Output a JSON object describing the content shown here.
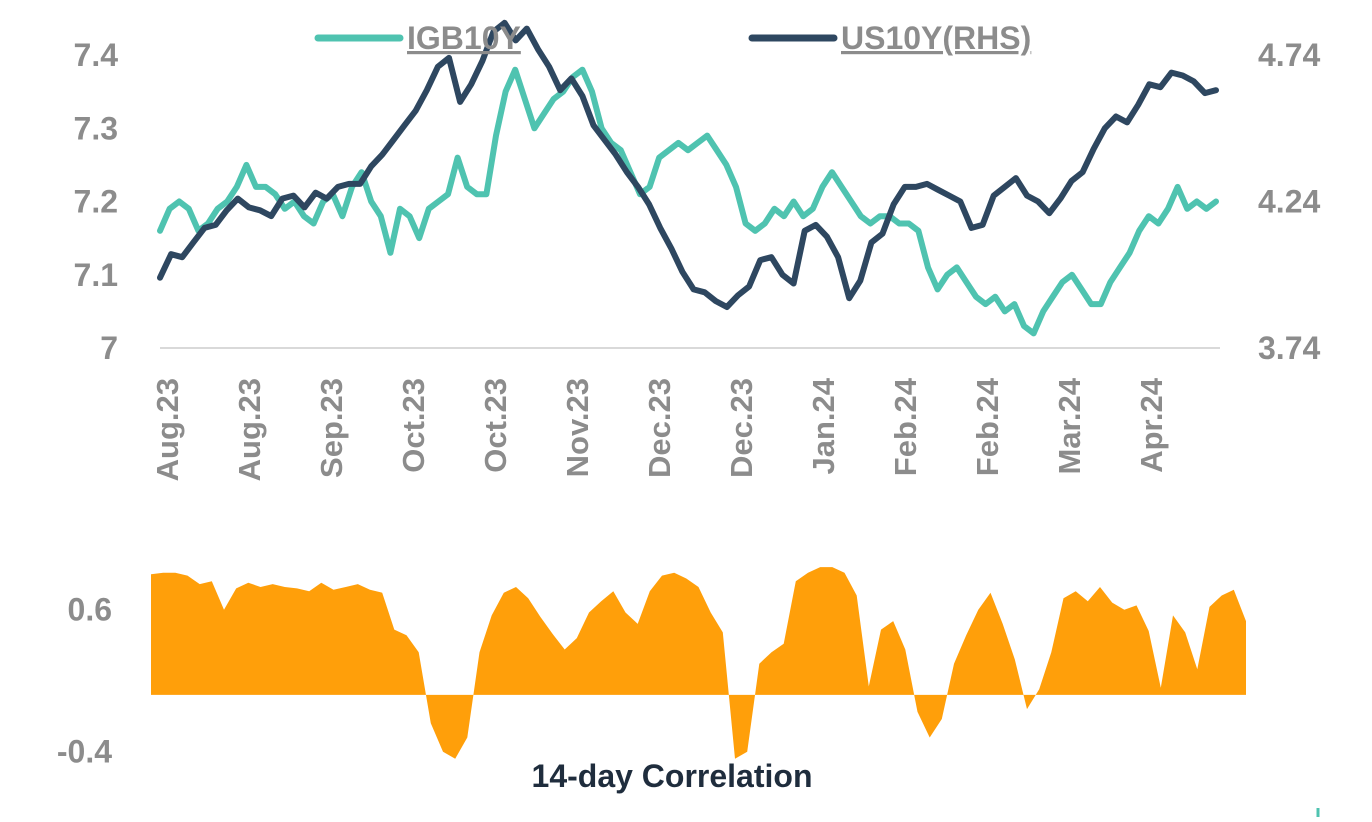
{
  "chart_data": [
    {
      "type": "line",
      "legend": {
        "placement": "top"
      },
      "y_left": {
        "ticks": [
          "7",
          "7.1",
          "7.2",
          "7.3",
          "7.4"
        ],
        "range": [
          7.0,
          7.4
        ]
      },
      "y_right": {
        "ticks": [
          "3.74",
          "4.24",
          "4.74"
        ],
        "range": [
          3.74,
          4.74
        ]
      },
      "x_ticks": [
        "Aug.23",
        "Aug.23",
        "Sep.23",
        "Oct.23",
        "Oct.23",
        "Nov.23",
        "Dec.23",
        "Dec.23",
        "Jan.24",
        "Feb.24",
        "Feb.24",
        "Mar.24",
        "Apr.24"
      ],
      "series": [
        {
          "name": "IGB10Y",
          "axis": "left",
          "color": "#4fc3b0",
          "values": [
            7.16,
            7.19,
            7.2,
            7.19,
            7.16,
            7.17,
            7.19,
            7.2,
            7.22,
            7.25,
            7.22,
            7.22,
            7.21,
            7.19,
            7.2,
            7.18,
            7.17,
            7.2,
            7.21,
            7.18,
            7.22,
            7.24,
            7.2,
            7.18,
            7.13,
            7.19,
            7.18,
            7.15,
            7.19,
            7.2,
            7.21,
            7.26,
            7.22,
            7.21,
            7.21,
            7.29,
            7.35,
            7.38,
            7.34,
            7.3,
            7.32,
            7.34,
            7.35,
            7.37,
            7.38,
            7.35,
            7.3,
            7.28,
            7.27,
            7.24,
            7.21,
            7.22,
            7.26,
            7.27,
            7.28,
            7.27,
            7.28,
            7.29,
            7.27,
            7.25,
            7.22,
            7.17,
            7.16,
            7.17,
            7.19,
            7.18,
            7.2,
            7.18,
            7.19,
            7.22,
            7.24,
            7.22,
            7.2,
            7.18,
            7.17,
            7.18,
            7.18,
            7.17,
            7.17,
            7.16,
            7.11,
            7.08,
            7.1,
            7.11,
            7.09,
            7.07,
            7.06,
            7.07,
            7.05,
            7.06,
            7.03,
            7.02,
            7.05,
            7.07,
            7.09,
            7.1,
            7.08,
            7.06,
            7.06,
            7.09,
            7.11,
            7.13,
            7.16,
            7.18,
            7.17,
            7.19,
            7.22,
            7.19,
            7.2,
            7.19,
            7.2
          ]
        },
        {
          "name": "US10Y(RHS)",
          "axis": "right",
          "color": "#2e4760",
          "values": [
            3.98,
            4.06,
            4.05,
            4.1,
            4.15,
            4.16,
            4.21,
            4.25,
            4.22,
            4.21,
            4.19,
            4.25,
            4.26,
            4.22,
            4.27,
            4.25,
            4.29,
            4.3,
            4.3,
            4.36,
            4.4,
            4.45,
            4.5,
            4.55,
            4.62,
            4.7,
            4.73,
            4.58,
            4.64,
            4.72,
            4.82,
            4.85,
            4.79,
            4.83,
            4.76,
            4.7,
            4.62,
            4.66,
            4.6,
            4.5,
            4.45,
            4.4,
            4.34,
            4.29,
            4.23,
            4.15,
            4.08,
            4.0,
            3.94,
            3.93,
            3.9,
            3.88,
            3.92,
            3.95,
            4.04,
            4.05,
            3.99,
            3.96,
            4.14,
            4.16,
            4.12,
            4.05,
            3.91,
            3.97,
            4.1,
            4.13,
            4.23,
            4.29,
            4.29,
            4.3,
            4.28,
            4.26,
            4.24,
            4.15,
            4.16,
            4.26,
            4.29,
            4.32,
            4.26,
            4.24,
            4.2,
            4.25,
            4.31,
            4.34,
            4.42,
            4.49,
            4.53,
            4.51,
            4.57,
            4.64,
            4.63,
            4.68,
            4.67,
            4.65,
            4.61,
            4.62
          ]
        }
      ]
    },
    {
      "type": "area",
      "title": "14-day Correlation",
      "color": "#ff9f0a",
      "y_ticks": [
        "0.6",
        "-0.4"
      ],
      "ylim": [
        -0.55,
        0.95
      ],
      "values": [
        0.85,
        0.86,
        0.86,
        0.84,
        0.78,
        0.8,
        0.6,
        0.75,
        0.79,
        0.76,
        0.78,
        0.76,
        0.75,
        0.73,
        0.79,
        0.74,
        0.76,
        0.78,
        0.74,
        0.72,
        0.46,
        0.42,
        0.3,
        -0.2,
        -0.4,
        -0.45,
        -0.3,
        0.3,
        0.56,
        0.72,
        0.76,
        0.68,
        0.55,
        0.43,
        0.32,
        0.4,
        0.58,
        0.66,
        0.73,
        0.58,
        0.5,
        0.73,
        0.84,
        0.86,
        0.82,
        0.76,
        0.58,
        0.44,
        -0.45,
        -0.4,
        0.22,
        0.3,
        0.36,
        0.8,
        0.86,
        0.9,
        0.9,
        0.86,
        0.7,
        0.06,
        0.46,
        0.52,
        0.32,
        -0.12,
        -0.3,
        -0.17,
        0.22,
        0.42,
        0.6,
        0.72,
        0.5,
        0.25,
        -0.1,
        0.04,
        0.3,
        0.68,
        0.73,
        0.66,
        0.76,
        0.65,
        0.6,
        0.63,
        0.45,
        0.05,
        0.56,
        0.44,
        0.18,
        0.62,
        0.7,
        0.74,
        0.52
      ]
    }
  ]
}
